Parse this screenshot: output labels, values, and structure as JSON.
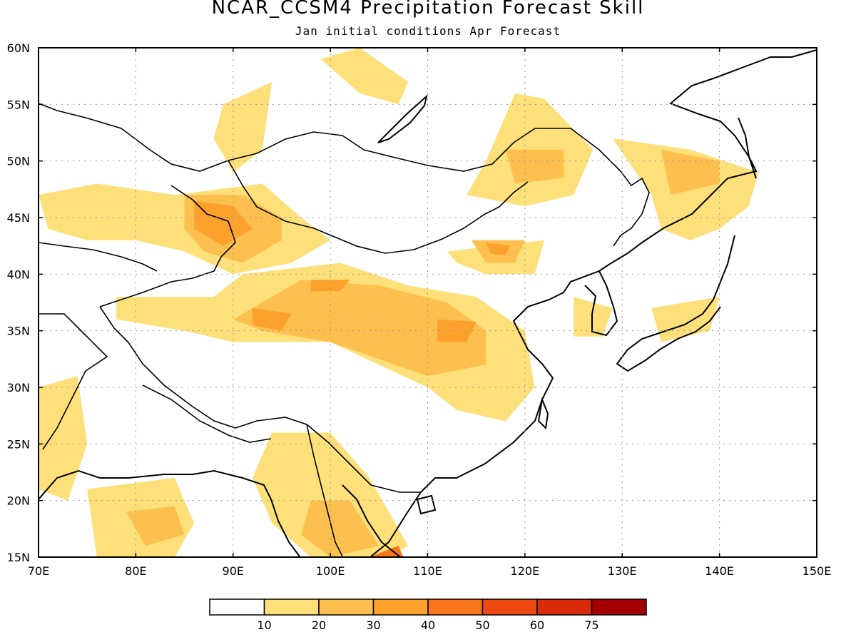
{
  "title": "NCAR_CCSM4 Precipitation Forecast Skill",
  "subtitle": "Jan initial conditions  Apr Forecast",
  "map": {
    "lon_range": [
      70,
      150
    ],
    "lat_range": [
      15,
      60
    ],
    "lon_ticks": [
      "70E",
      "80E",
      "90E",
      "100E",
      "110E",
      "120E",
      "130E",
      "140E",
      "150E"
    ],
    "lat_ticks": [
      "15N",
      "20N",
      "25N",
      "30N",
      "35N",
      "40N",
      "45N",
      "50N",
      "55N",
      "60N"
    ],
    "grid": true
  },
  "colorbar": {
    "labels": [
      "10",
      "20",
      "30",
      "40",
      "50",
      "60",
      "75"
    ],
    "colors": [
      "#ffffff",
      "#fee07a",
      "#fdc04e",
      "#fca12c",
      "#f8751a",
      "#f04a13",
      "#d92a0b",
      "#a50000"
    ]
  },
  "skill_regions": [
    {
      "level": 1,
      "points": [
        [
          84,
          47
        ],
        [
          93,
          48
        ],
        [
          97,
          45
        ],
        [
          100,
          43
        ],
        [
          96,
          41
        ],
        [
          90,
          40
        ],
        [
          85,
          42
        ],
        [
          80,
          43
        ],
        [
          75,
          43
        ],
        [
          71,
          44
        ],
        [
          70,
          47
        ],
        [
          76,
          48
        ]
      ]
    },
    {
      "level": 2,
      "points": [
        [
          85,
          47
        ],
        [
          91,
          47
        ],
        [
          95,
          45
        ],
        [
          95,
          43
        ],
        [
          91,
          41
        ],
        [
          87,
          42
        ],
        [
          85,
          44
        ]
      ]
    },
    {
      "level": 3,
      "points": [
        [
          86,
          46.5
        ],
        [
          90,
          46
        ],
        [
          92,
          44
        ],
        [
          89,
          42.5
        ],
        [
          86,
          44
        ]
      ]
    },
    {
      "level": 1,
      "points": [
        [
          89,
          55
        ],
        [
          94,
          57
        ],
        [
          93,
          51
        ],
        [
          90,
          49
        ],
        [
          88,
          52
        ]
      ]
    },
    {
      "level": 1,
      "points": [
        [
          99,
          59
        ],
        [
          103,
          60
        ],
        [
          108,
          57
        ],
        [
          107,
          55
        ],
        [
          103,
          56
        ]
      ]
    },
    {
      "level": 1,
      "points": [
        [
          119,
          56
        ],
        [
          122,
          55.5
        ],
        [
          127,
          51
        ],
        [
          125,
          47
        ],
        [
          120,
          46
        ],
        [
          114,
          47
        ],
        [
          116,
          50
        ]
      ]
    },
    {
      "level": 2,
      "points": [
        [
          118,
          51
        ],
        [
          124,
          51
        ],
        [
          124,
          48.5
        ],
        [
          119,
          48
        ]
      ]
    },
    {
      "level": 1,
      "points": [
        [
          112,
          42
        ],
        [
          122,
          43
        ],
        [
          121,
          40
        ],
        [
          116,
          40
        ],
        [
          113,
          41
        ]
      ]
    },
    {
      "level": 2,
      "points": [
        [
          114.5,
          43
        ],
        [
          120,
          43
        ],
        [
          119,
          41
        ],
        [
          116,
          41
        ]
      ]
    },
    {
      "level": 3,
      "points": [
        [
          116,
          42.8
        ],
        [
          118.5,
          42.5
        ],
        [
          118,
          41.7
        ],
        [
          116.5,
          41.8
        ]
      ]
    },
    {
      "level": 1,
      "points": [
        [
          91,
          40
        ],
        [
          101,
          41
        ],
        [
          108,
          39
        ],
        [
          115,
          38
        ],
        [
          120,
          35
        ],
        [
          121,
          30
        ],
        [
          118,
          27
        ],
        [
          113,
          28
        ],
        [
          110,
          30
        ],
        [
          105,
          32
        ],
        [
          100,
          34
        ],
        [
          95,
          34
        ],
        [
          90,
          34
        ],
        [
          85,
          35
        ],
        [
          78,
          36
        ],
        [
          78,
          38
        ],
        [
          88,
          38
        ]
      ]
    },
    {
      "level": 2,
      "points": [
        [
          97,
          39.5
        ],
        [
          105,
          39
        ],
        [
          112,
          37.5
        ],
        [
          116,
          35
        ],
        [
          116,
          32
        ],
        [
          110,
          31
        ],
        [
          105,
          32.5
        ],
        [
          100,
          34
        ],
        [
          93,
          35
        ],
        [
          90,
          36
        ],
        [
          94,
          38
        ]
      ]
    },
    {
      "level": 3,
      "points": [
        [
          111,
          36
        ],
        [
          115,
          35.8
        ],
        [
          114,
          34
        ],
        [
          111,
          34
        ]
      ]
    },
    {
      "level": 3,
      "points": [
        [
          92,
          37
        ],
        [
          96,
          36.5
        ],
        [
          95,
          35
        ],
        [
          92,
          35.5
        ]
      ]
    },
    {
      "level": 3,
      "points": [
        [
          98,
          39.5
        ],
        [
          102,
          39.5
        ],
        [
          101,
          38.5
        ],
        [
          98,
          38.5
        ]
      ]
    },
    {
      "level": 1,
      "points": [
        [
          129,
          52
        ],
        [
          137,
          51
        ],
        [
          144,
          49
        ],
        [
          143,
          46
        ],
        [
          140,
          44
        ],
        [
          137,
          43
        ],
        [
          134,
          44
        ],
        [
          133,
          47
        ]
      ]
    },
    {
      "level": 2,
      "points": [
        [
          134,
          51
        ],
        [
          140,
          50
        ],
        [
          140,
          48
        ],
        [
          135,
          47
        ]
      ]
    },
    {
      "level": 1,
      "points": [
        [
          70,
          30
        ],
        [
          74,
          31
        ],
        [
          75,
          25
        ],
        [
          73,
          20
        ],
        [
          70,
          21
        ]
      ]
    },
    {
      "level": 1,
      "points": [
        [
          75,
          21
        ],
        [
          84,
          22
        ],
        [
          86,
          18
        ],
        [
          84,
          15
        ],
        [
          76,
          15
        ]
      ]
    },
    {
      "level": 2,
      "points": [
        [
          79,
          19
        ],
        [
          84,
          19.5
        ],
        [
          85,
          17
        ],
        [
          81,
          16
        ]
      ]
    },
    {
      "level": 1,
      "points": [
        [
          94,
          26
        ],
        [
          100,
          26
        ],
        [
          104,
          22
        ],
        [
          108,
          16
        ],
        [
          106,
          15
        ],
        [
          98,
          15
        ],
        [
          94,
          18
        ],
        [
          92,
          22
        ]
      ]
    },
    {
      "level": 2,
      "points": [
        [
          98,
          20
        ],
        [
          102,
          20
        ],
        [
          105,
          16
        ],
        [
          100,
          15
        ],
        [
          97,
          17
        ]
      ]
    },
    {
      "level": 4,
      "points": [
        [
          104,
          15
        ],
        [
          107,
          16
        ],
        [
          107.5,
          15
        ]
      ]
    },
    {
      "level": 1,
      "points": [
        [
          133,
          37
        ],
        [
          140,
          38
        ],
        [
          139,
          35
        ],
        [
          134,
          34
        ]
      ]
    },
    {
      "level": 1,
      "points": [
        [
          125,
          38
        ],
        [
          129,
          37
        ],
        [
          128,
          34.5
        ],
        [
          125,
          34.5
        ]
      ]
    }
  ]
}
